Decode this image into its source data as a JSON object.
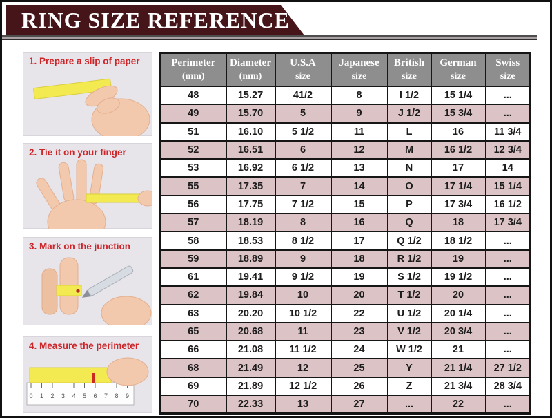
{
  "banner": {
    "title": "RING SIZE REFERENCE"
  },
  "steps": [
    {
      "label": "1. Prepare a slip of paper",
      "illustration": "hand-holding-yellow-paper-slip"
    },
    {
      "label": "2. Tie it on your finger",
      "illustration": "yellow-strip-wrapped-around-finger"
    },
    {
      "label": "3. Mark on the junction",
      "illustration": "pen-marking-strip-on-finger"
    },
    {
      "label": "4. Measure the perimeter",
      "illustration": "yellow-strip-on-ruler",
      "ruler_numbers": [
        "0",
        "1",
        "2",
        "3",
        "4",
        "5",
        "6",
        "7",
        "8",
        "9"
      ]
    }
  ],
  "chart_data": {
    "type": "table",
    "title": "RING SIZE REFERENCE",
    "columns": [
      {
        "label": "Perimeter",
        "sub": "(mm)"
      },
      {
        "label": "Diameter",
        "sub": "(mm)"
      },
      {
        "label": "U.S.A",
        "sub": "size"
      },
      {
        "label": "Japanese",
        "sub": "size"
      },
      {
        "label": "British",
        "sub": "size"
      },
      {
        "label": "German",
        "sub": "size"
      },
      {
        "label": "Swiss",
        "sub": "size"
      }
    ],
    "rows": [
      [
        "48",
        "15.27",
        "41/2",
        "8",
        "I 1/2",
        "15 1/4",
        "..."
      ],
      [
        "49",
        "15.70",
        "5",
        "9",
        "J 1/2",
        "15 3/4",
        "..."
      ],
      [
        "51",
        "16.10",
        "5 1/2",
        "11",
        "L",
        "16",
        "11 3/4"
      ],
      [
        "52",
        "16.51",
        "6",
        "12",
        "M",
        "16 1/2",
        "12 3/4"
      ],
      [
        "53",
        "16.92",
        "6 1/2",
        "13",
        "N",
        "17",
        "14"
      ],
      [
        "55",
        "17.35",
        "7",
        "14",
        "O",
        "17 1/4",
        "15 1/4"
      ],
      [
        "56",
        "17.75",
        "7 1/2",
        "15",
        "P",
        "17 3/4",
        "16 1/2"
      ],
      [
        "57",
        "18.19",
        "8",
        "16",
        "Q",
        "18",
        "17 3/4"
      ],
      [
        "58",
        "18.53",
        "8 1/2",
        "17",
        "Q 1/2",
        "18 1/2",
        "..."
      ],
      [
        "59",
        "18.89",
        "9",
        "18",
        "R 1/2",
        "19",
        "..."
      ],
      [
        "61",
        "19.41",
        "9 1/2",
        "19",
        "S 1/2",
        "19 1/2",
        "..."
      ],
      [
        "62",
        "19.84",
        "10",
        "20",
        "T 1/2",
        "20",
        "..."
      ],
      [
        "63",
        "20.20",
        "10 1/2",
        "22",
        "U 1/2",
        "20 1/4",
        "..."
      ],
      [
        "65",
        "20.68",
        "11",
        "23",
        "V 1/2",
        "20 3/4",
        "..."
      ],
      [
        "66",
        "21.08",
        "11 1/2",
        "24",
        "W 1/2",
        "21",
        "..."
      ],
      [
        "68",
        "21.49",
        "12",
        "25",
        "Y",
        "21 1/4",
        "27 1/2"
      ],
      [
        "69",
        "21.89",
        "12 1/2",
        "26",
        "Z",
        "21 3/4",
        "28 3/4"
      ],
      [
        "70",
        "22.33",
        "13",
        "27",
        "...",
        "22",
        "..."
      ]
    ],
    "zebra_striping": "alternating white / pink rows starting white",
    "legend_position": "none",
    "grid": true
  },
  "colors": {
    "banner_maroon": "#451519",
    "header_gray": "#8e8e8e",
    "row_pink": "#dcc3c5",
    "step_label_red": "#cc2629",
    "step_box_bg": "#e7e4ea",
    "strip_yellow": "#f3ea52",
    "skin": "#f2c9ac",
    "table_border": "#161616"
  }
}
